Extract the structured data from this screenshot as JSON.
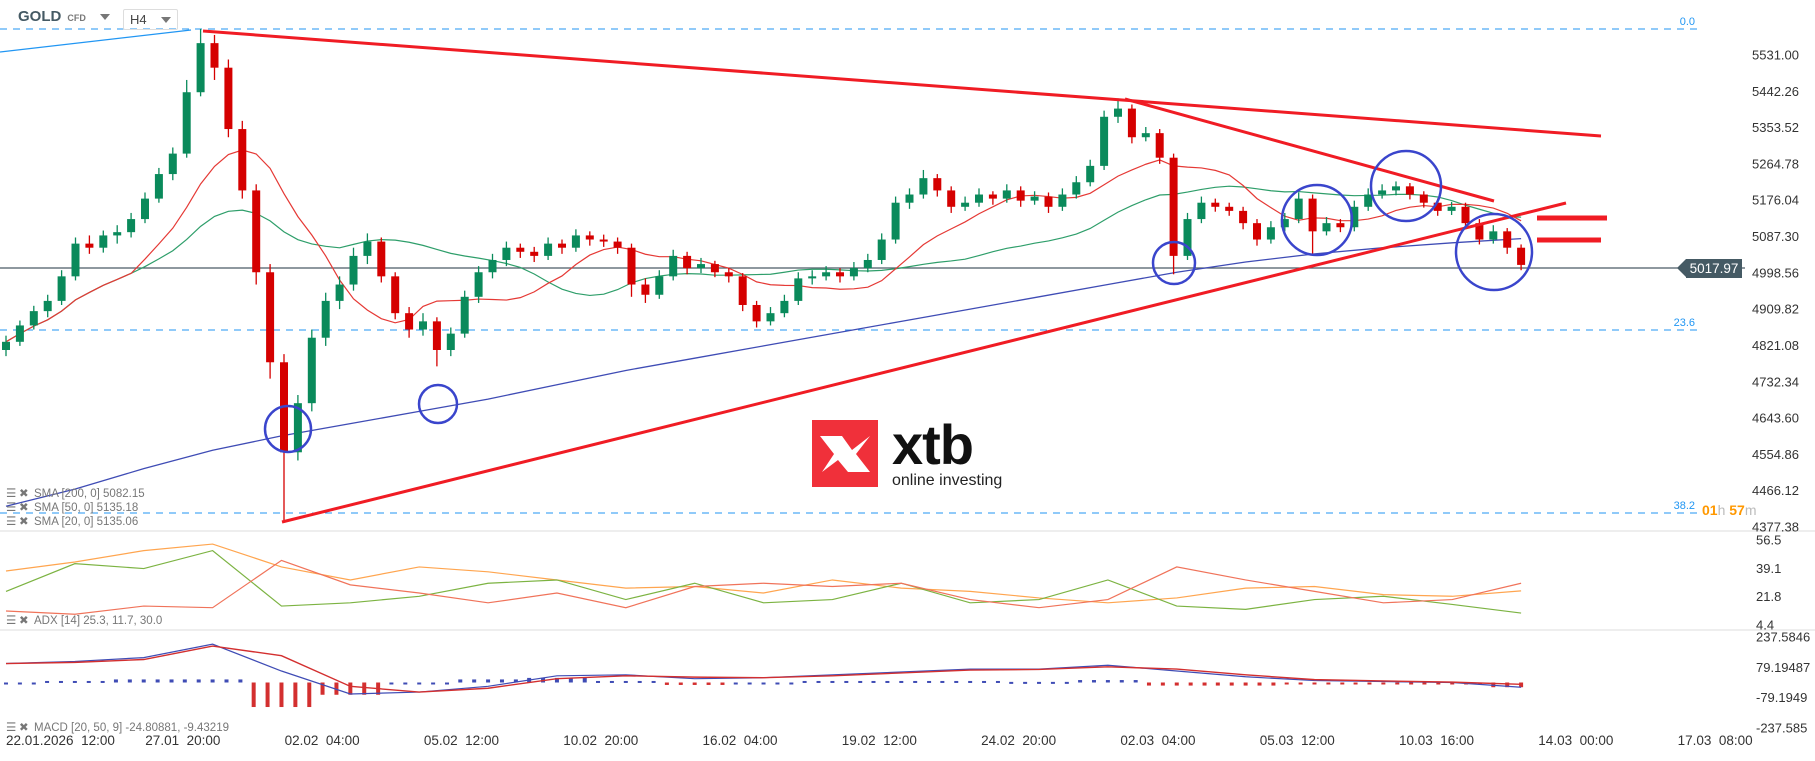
{
  "header": {
    "symbol": "GOLD",
    "instrument_type": "CFD",
    "timeframe": "H4"
  },
  "logo": {
    "brand": "xtb",
    "tagline": "online investing"
  },
  "current_price": "5017.97",
  "countdown": {
    "hours": "01",
    "h": "h",
    "minutes": "57",
    "m": "m"
  },
  "fib_levels": [
    "0.0",
    "23.6",
    "38.2"
  ],
  "legends": {
    "sma200": "SMA [200, 0] 5082.15",
    "sma50": "SMA [50, 0] 5135.18",
    "sma20": "SMA [20, 0] 5135.06",
    "adx": "ADX [14] 25.3, 11.7, 30.0",
    "macd": "MACD [20, 50, 9] -24.80881, -9.43219"
  },
  "colors": {
    "up": "#0a8a5b",
    "down": "#d50000",
    "sma20": "#e53935",
    "sma50": "#2e9e6a",
    "sma200": "#3f4cb5",
    "fib": "#2196f3",
    "trendline": "#f01c24",
    "circle": "#3a45cc",
    "adx": "#ffa54f",
    "plus_di": "#7cb342",
    "minus_di": "#f0735a",
    "macd": "#3f4cb5",
    "signal": "#d32f2f"
  },
  "chart_data": [
    {
      "type": "candlestick",
      "title": "GOLD H4",
      "price_ticks": [
        "5531.00",
        "5442.26",
        "5353.52",
        "5264.78",
        "5176.04",
        "5087.30",
        "4998.56",
        "4909.82",
        "4821.08",
        "4732.34",
        "4643.60",
        "4554.86",
        "4466.12",
        "4377.38"
      ],
      "ylim": [
        4377.38,
        5531.0
      ],
      "time_ticks": [
        "22.01.2026  12:00",
        "27.01  20:00",
        "02.02  04:00",
        "05.02  12:00",
        "10.02  20:00",
        "16.02  04:00",
        "19.02  12:00",
        "24.02  20:00",
        "02.03  04:00",
        "05.03  12:00",
        "10.03  16:00",
        "14.03  00:00",
        "17.03  08:00"
      ],
      "candles": [
        [
          4810,
          4845,
          4795,
          4830
        ],
        [
          4830,
          4882,
          4820,
          4870
        ],
        [
          4870,
          4918,
          4860,
          4905
        ],
        [
          4905,
          4945,
          4890,
          4930
        ],
        [
          4930,
          5005,
          4920,
          4990
        ],
        [
          4990,
          5085,
          4980,
          5070
        ],
        [
          5070,
          5090,
          5045,
          5060
        ],
        [
          5060,
          5102,
          5048,
          5090
        ],
        [
          5090,
          5115,
          5070,
          5098
        ],
        [
          5098,
          5145,
          5085,
          5130
        ],
        [
          5130,
          5195,
          5120,
          5180
        ],
        [
          5180,
          5255,
          5170,
          5240
        ],
        [
          5240,
          5305,
          5225,
          5290
        ],
        [
          5290,
          5470,
          5280,
          5440
        ],
        [
          5440,
          5595,
          5430,
          5560
        ],
        [
          5560,
          5580,
          5470,
          5500
        ],
        [
          5500,
          5520,
          5330,
          5350
        ],
        [
          5350,
          5370,
          5180,
          5200
        ],
        [
          5200,
          5215,
          4970,
          5000
        ],
        [
          5000,
          5020,
          4740,
          4780
        ],
        [
          4780,
          4800,
          4394,
          4560
        ],
        [
          4560,
          4700,
          4540,
          4680
        ],
        [
          4680,
          4860,
          4660,
          4840
        ],
        [
          4840,
          4950,
          4820,
          4930
        ],
        [
          4930,
          4990,
          4910,
          4970
        ],
        [
          4970,
          5060,
          4955,
          5040
        ],
        [
          5040,
          5095,
          5020,
          5075
        ],
        [
          5075,
          5085,
          4975,
          4990
        ],
        [
          4990,
          5000,
          4885,
          4900
        ],
        [
          4900,
          4915,
          4840,
          4860
        ],
        [
          4860,
          4900,
          4845,
          4880
        ],
        [
          4880,
          4890,
          4770,
          4810
        ],
        [
          4810,
          4865,
          4795,
          4850
        ],
        [
          4850,
          4955,
          4840,
          4940
        ],
        [
          4940,
          5015,
          4925,
          5000
        ],
        [
          5000,
          5045,
          4985,
          5030
        ],
        [
          5030,
          5075,
          5015,
          5060
        ],
        [
          5060,
          5070,
          5035,
          5050
        ],
        [
          5050,
          5062,
          5025,
          5040
        ],
        [
          5040,
          5085,
          5030,
          5070
        ],
        [
          5070,
          5080,
          5045,
          5060
        ],
        [
          5060,
          5105,
          5050,
          5090
        ],
        [
          5090,
          5100,
          5065,
          5080
        ],
        [
          5080,
          5092,
          5062,
          5075
        ],
        [
          5075,
          5085,
          5045,
          5060
        ],
        [
          5060,
          5070,
          4940,
          4970
        ],
        [
          4970,
          4985,
          4925,
          4945
        ],
        [
          4945,
          5005,
          4935,
          4990
        ],
        [
          4990,
          5055,
          4980,
          5040
        ],
        [
          5040,
          5050,
          4995,
          5010
        ],
        [
          5010,
          5035,
          4998,
          5020
        ],
        [
          5020,
          5028,
          4988,
          5000
        ],
        [
          5000,
          5010,
          4975,
          4990
        ],
        [
          4990,
          4998,
          4905,
          4920
        ],
        [
          4920,
          4930,
          4865,
          4880
        ],
        [
          4880,
          4915,
          4870,
          4900
        ],
        [
          4900,
          4945,
          4890,
          4930
        ],
        [
          4930,
          5000,
          4920,
          4985
        ],
        [
          4985,
          5005,
          4970,
          4990
        ],
        [
          4990,
          5015,
          4980,
          5000
        ],
        [
          5000,
          5010,
          4975,
          4990
        ],
        [
          4990,
          5025,
          4980,
          5010
        ],
        [
          5010,
          5045,
          5000,
          5030
        ],
        [
          5030,
          5095,
          5020,
          5080
        ],
        [
          5080,
          5185,
          5070,
          5170
        ],
        [
          5170,
          5205,
          5155,
          5190
        ],
        [
          5190,
          5250,
          5180,
          5230
        ],
        [
          5230,
          5240,
          5185,
          5200
        ],
        [
          5200,
          5210,
          5145,
          5160
        ],
        [
          5160,
          5185,
          5150,
          5170
        ],
        [
          5170,
          5205,
          5160,
          5190
        ],
        [
          5190,
          5198,
          5165,
          5180
        ],
        [
          5180,
          5215,
          5170,
          5200
        ],
        [
          5200,
          5210,
          5160,
          5175
        ],
        [
          5175,
          5198,
          5165,
          5185
        ],
        [
          5185,
          5195,
          5145,
          5160
        ],
        [
          5160,
          5205,
          5150,
          5190
        ],
        [
          5190,
          5235,
          5180,
          5220
        ],
        [
          5220,
          5275,
          5210,
          5260
        ],
        [
          5260,
          5395,
          5250,
          5380
        ],
        [
          5380,
          5425,
          5365,
          5400
        ],
        [
          5400,
          5410,
          5315,
          5330
        ],
        [
          5330,
          5355,
          5320,
          5340
        ],
        [
          5340,
          5350,
          5265,
          5280
        ],
        [
          5280,
          5290,
          4995,
          5040
        ],
        [
          5040,
          5145,
          5030,
          5130
        ],
        [
          5130,
          5185,
          5120,
          5170
        ],
        [
          5170,
          5180,
          5148,
          5160
        ],
        [
          5160,
          5170,
          5138,
          5150
        ],
        [
          5150,
          5160,
          5105,
          5120
        ],
        [
          5120,
          5130,
          5065,
          5080
        ],
        [
          5080,
          5125,
          5070,
          5110
        ],
        [
          5110,
          5145,
          5100,
          5130
        ],
        [
          5130,
          5195,
          5120,
          5180
        ],
        [
          5180,
          5190,
          5040,
          5100
        ],
        [
          5100,
          5135,
          5090,
          5120
        ],
        [
          5120,
          5130,
          5098,
          5110
        ],
        [
          5110,
          5175,
          5100,
          5160
        ],
        [
          5160,
          5205,
          5150,
          5190
        ],
        [
          5190,
          5215,
          5180,
          5200
        ],
        [
          5200,
          5222,
          5188,
          5210
        ],
        [
          5210,
          5218,
          5178,
          5190
        ],
        [
          5190,
          5198,
          5158,
          5170
        ],
        [
          5170,
          5180,
          5138,
          5150
        ],
        [
          5150,
          5172,
          5140,
          5160
        ],
        [
          5160,
          5170,
          5105,
          5120
        ],
        [
          5120,
          5130,
          5068,
          5080
        ],
        [
          5080,
          5115,
          5070,
          5100
        ],
        [
          5100,
          5108,
          5045,
          5060
        ],
        [
          5060,
          5068,
          5005,
          5017.97
        ]
      ],
      "sma200": [
        4428,
        4470,
        4520,
        4565,
        4600,
        4630,
        4660,
        4690,
        4725,
        4760,
        4790,
        4820,
        4850,
        4880,
        4910,
        4940,
        4970,
        5000,
        5025,
        5045,
        5060,
        5072,
        5082.15
      ]
    },
    {
      "type": "line",
      "title": "ADX [14]",
      "ticks": [
        "56.5",
        "39.1",
        "21.8",
        "4.4"
      ],
      "ylim": [
        4.4,
        56.5
      ],
      "series": [
        {
          "name": "ADX",
          "values": [
            37.5,
            43,
            50,
            54,
            40,
            32,
            40,
            37,
            32,
            27,
            28,
            24,
            32,
            27,
            25,
            21,
            18,
            21,
            27,
            28,
            23,
            22,
            25.3
          ]
        },
        {
          "name": "+DI",
          "values": [
            25,
            42,
            39,
            50,
            16,
            18,
            22,
            30,
            32,
            20,
            30,
            18,
            20,
            30,
            18,
            20,
            32,
            16,
            14,
            20,
            22,
            17,
            11.7
          ]
        },
        {
          "name": "-DI",
          "values": [
            13,
            11,
            16,
            15,
            44,
            29,
            24,
            18,
            24,
            15,
            28,
            30,
            28,
            30,
            20,
            15,
            20,
            40,
            32,
            25,
            18,
            20,
            30.0
          ]
        }
      ]
    },
    {
      "type": "line",
      "title": "MACD [20, 50, 9]",
      "ticks": [
        "237.5846",
        "79.19487",
        "-79.1949",
        "-237.585"
      ],
      "ylim": [
        -237.585,
        237.5846
      ],
      "series": [
        {
          "name": "MACD",
          "values": [
            99,
            110,
            130,
            200,
            60,
            -60,
            -50,
            -20,
            35,
            40,
            20,
            25,
            40,
            55,
            70,
            70,
            90,
            60,
            30,
            10,
            5,
            0,
            -24.80881
          ]
        },
        {
          "name": "Signal",
          "values": [
            99,
            105,
            120,
            190,
            140,
            -20,
            -50,
            -30,
            20,
            35,
            28,
            25,
            35,
            50,
            65,
            68,
            82,
            70,
            40,
            15,
            8,
            2,
            -9.43219
          ]
        }
      ]
    }
  ]
}
